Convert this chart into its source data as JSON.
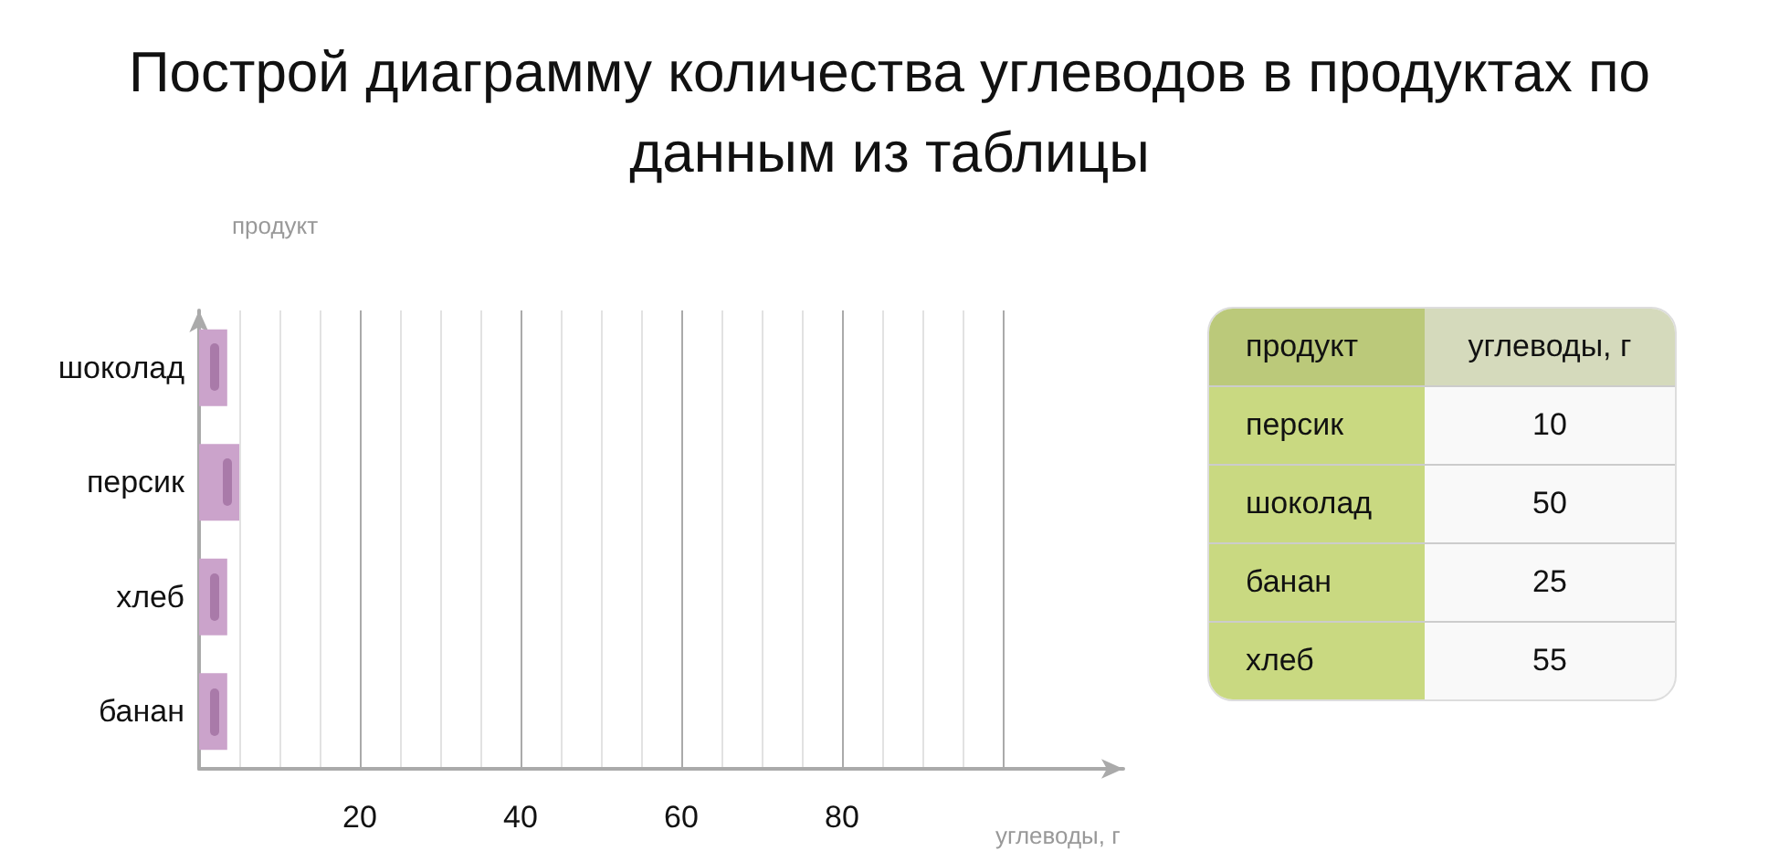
{
  "chart_data": [
    {
      "type": "bar",
      "orientation": "horizontal",
      "title": "Построй диаграмму количества углеводов в продуктах по данным из таблицы",
      "xlabel": "углеводы, г",
      "ylabel": "продукт",
      "categories": [
        "шоколад",
        "персик",
        "хлеб",
        "банан"
      ],
      "values": [
        3.5,
        5,
        3.5,
        3.5
      ],
      "color": "#cba3cb",
      "xlim": [
        0,
        115
      ],
      "xticks": [
        {
          "value": 5,
          "label": null
        },
        {
          "value": 10,
          "label": null
        },
        {
          "value": 15,
          "label": null
        },
        20,
        {
          "value": 25,
          "label": null
        },
        {
          "value": 30,
          "label": null
        },
        {
          "value": 35,
          "label": null
        },
        40,
        {
          "value": 45,
          "label": null
        },
        {
          "value": 50,
          "label": null
        },
        {
          "value": 55,
          "label": null
        },
        60,
        {
          "value": 65,
          "label": null
        },
        {
          "value": 70,
          "label": null
        },
        {
          "value": 75,
          "label": null
        },
        80,
        {
          "value": 85,
          "label": null
        },
        {
          "value": 90,
          "label": null
        },
        {
          "value": 95,
          "label": null
        },
        {
          "value": 100,
          "label": null
        }
      ],
      "grid": "x"
    },
    {
      "type": "other",
      "xlabel": "продукт",
      "ylabel": "углеводы, г",
      "categories": [
        "персик",
        "шоколад",
        "банан",
        "хлеб"
      ],
      "values": [
        10,
        50,
        25,
        55
      ],
      "data_labels": true
    }
  ]
}
